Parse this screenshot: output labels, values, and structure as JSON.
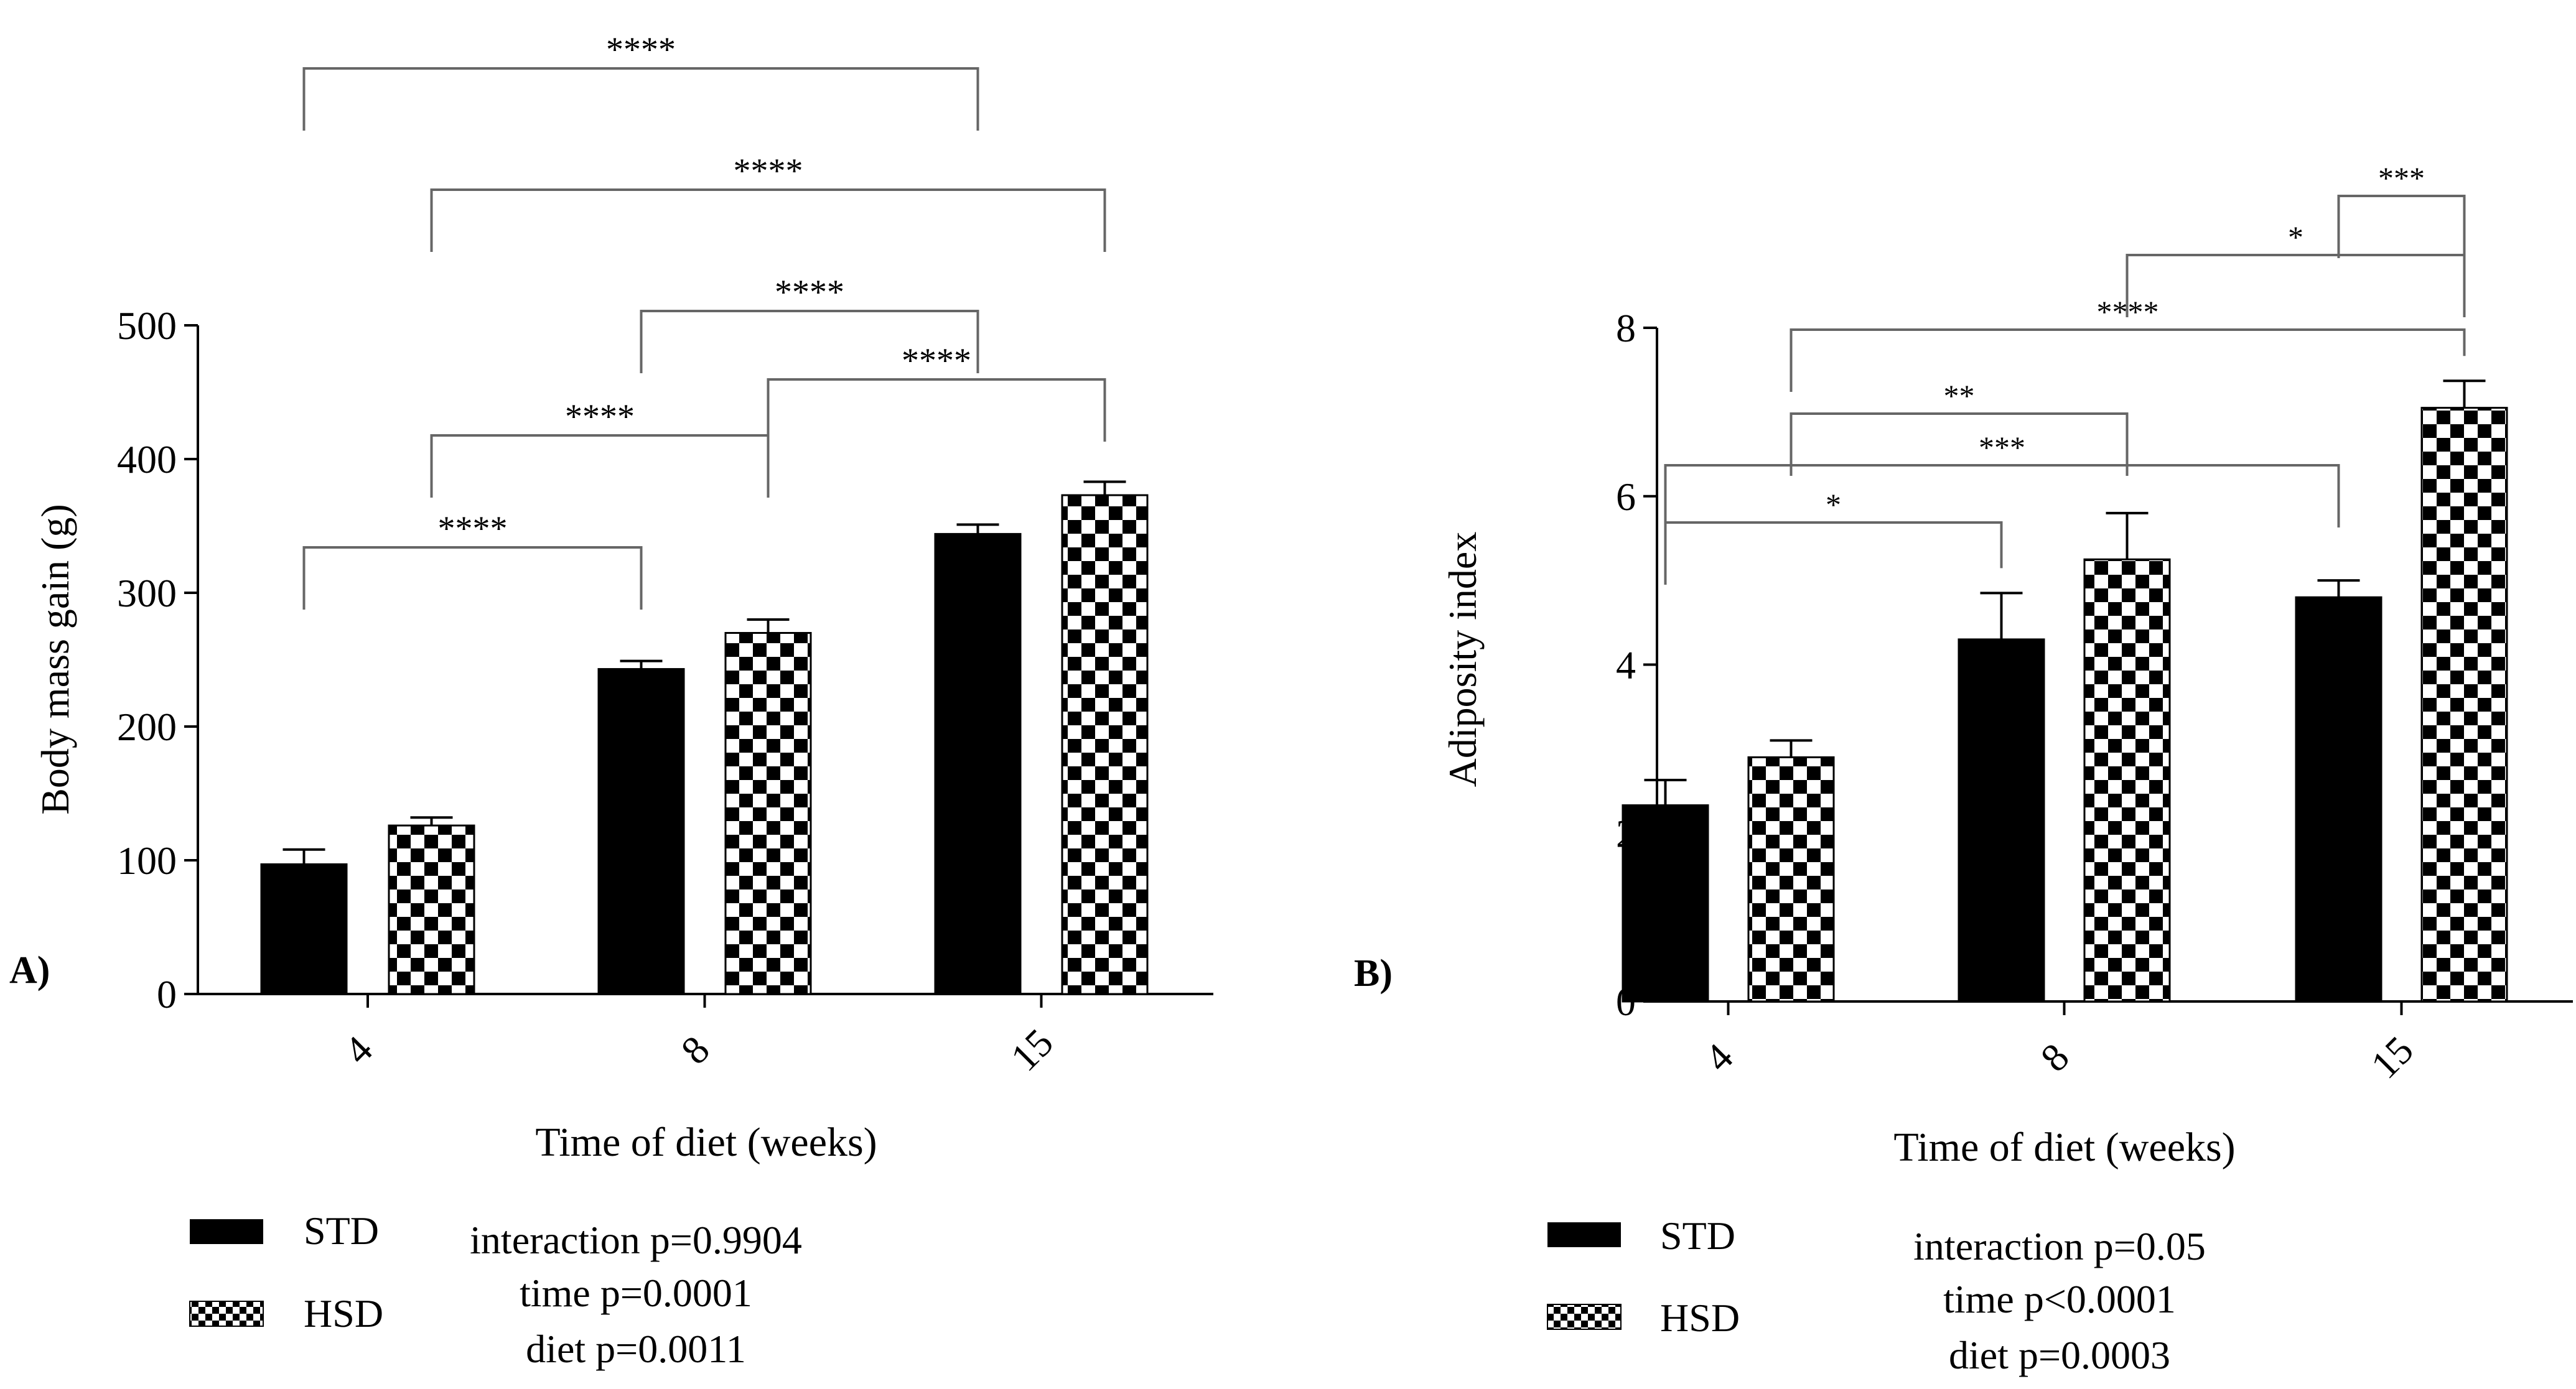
{
  "chart_data": [
    {
      "panel": "A)",
      "type": "bar",
      "ylabel": "Body mass gain (g)",
      "xlabel": "Time of diet (weeks)",
      "ylim": [
        0,
        500
      ],
      "yticks": [
        "0",
        "100",
        "200",
        "300",
        "400",
        "500"
      ],
      "categories": [
        "4",
        "8",
        "15"
      ],
      "series": [
        {
          "name": "STD",
          "values": [
            97,
            243,
            344
          ],
          "errors": [
            11,
            6,
            7
          ]
        },
        {
          "name": "HSD",
          "values": [
            126,
            270,
            373
          ],
          "errors": [
            6,
            10,
            10
          ]
        }
      ],
      "legend": [
        "STD",
        "HSD"
      ],
      "stats": [
        "interaction p=0.9904",
        "time p=0.0001",
        "diet p=0.0011"
      ],
      "brackets": [
        {
          "from": [
            0,
            0
          ],
          "to": [
            1,
            0
          ],
          "label": "****"
        },
        {
          "from": [
            0,
            1
          ],
          "to": [
            1,
            1
          ],
          "label": "****"
        },
        {
          "from": [
            1,
            0
          ],
          "to": [
            2,
            0
          ],
          "label": "****"
        },
        {
          "from": [
            1,
            1
          ],
          "to": [
            2,
            1
          ],
          "label": "****"
        },
        {
          "from": [
            0,
            1
          ],
          "to": [
            2,
            1
          ],
          "label": "****"
        },
        {
          "from": [
            0,
            0
          ],
          "to": [
            2,
            0
          ],
          "label": "****"
        }
      ]
    },
    {
      "panel": "B)",
      "type": "bar",
      "ylabel": "Adiposity index",
      "xlabel": "Time of diet (weeks)",
      "ylim": [
        0,
        8
      ],
      "yticks": [
        "0",
        "2",
        "4",
        "6",
        "8"
      ],
      "categories": [
        "4",
        "8",
        "15"
      ],
      "series": [
        {
          "name": "STD",
          "values": [
            2.33,
            4.3,
            4.8
          ],
          "errors": [
            0.3,
            0.55,
            0.2
          ]
        },
        {
          "name": "HSD",
          "values": [
            2.9,
            5.25,
            7.05
          ],
          "errors": [
            0.2,
            0.55,
            0.32
          ]
        }
      ],
      "legend": [
        "STD",
        "HSD"
      ],
      "stats": [
        "interaction p=0.05",
        "time p<0.0001",
        "diet p=0.0003"
      ],
      "brackets": [
        {
          "from": [
            0,
            0
          ],
          "to": [
            1,
            0
          ],
          "label": "*"
        },
        {
          "from": [
            0,
            0
          ],
          "to": [
            2,
            0
          ],
          "label": "***"
        },
        {
          "from": [
            0,
            1
          ],
          "to": [
            1,
            1
          ],
          "label": "**"
        },
        {
          "from": [
            0,
            1
          ],
          "to": [
            2,
            1
          ],
          "label": "****"
        },
        {
          "from": [
            1,
            1
          ],
          "to": [
            2,
            1
          ],
          "label": "*"
        },
        {
          "from": [
            2,
            0
          ],
          "to": [
            2,
            1
          ],
          "label": "***"
        }
      ]
    }
  ]
}
